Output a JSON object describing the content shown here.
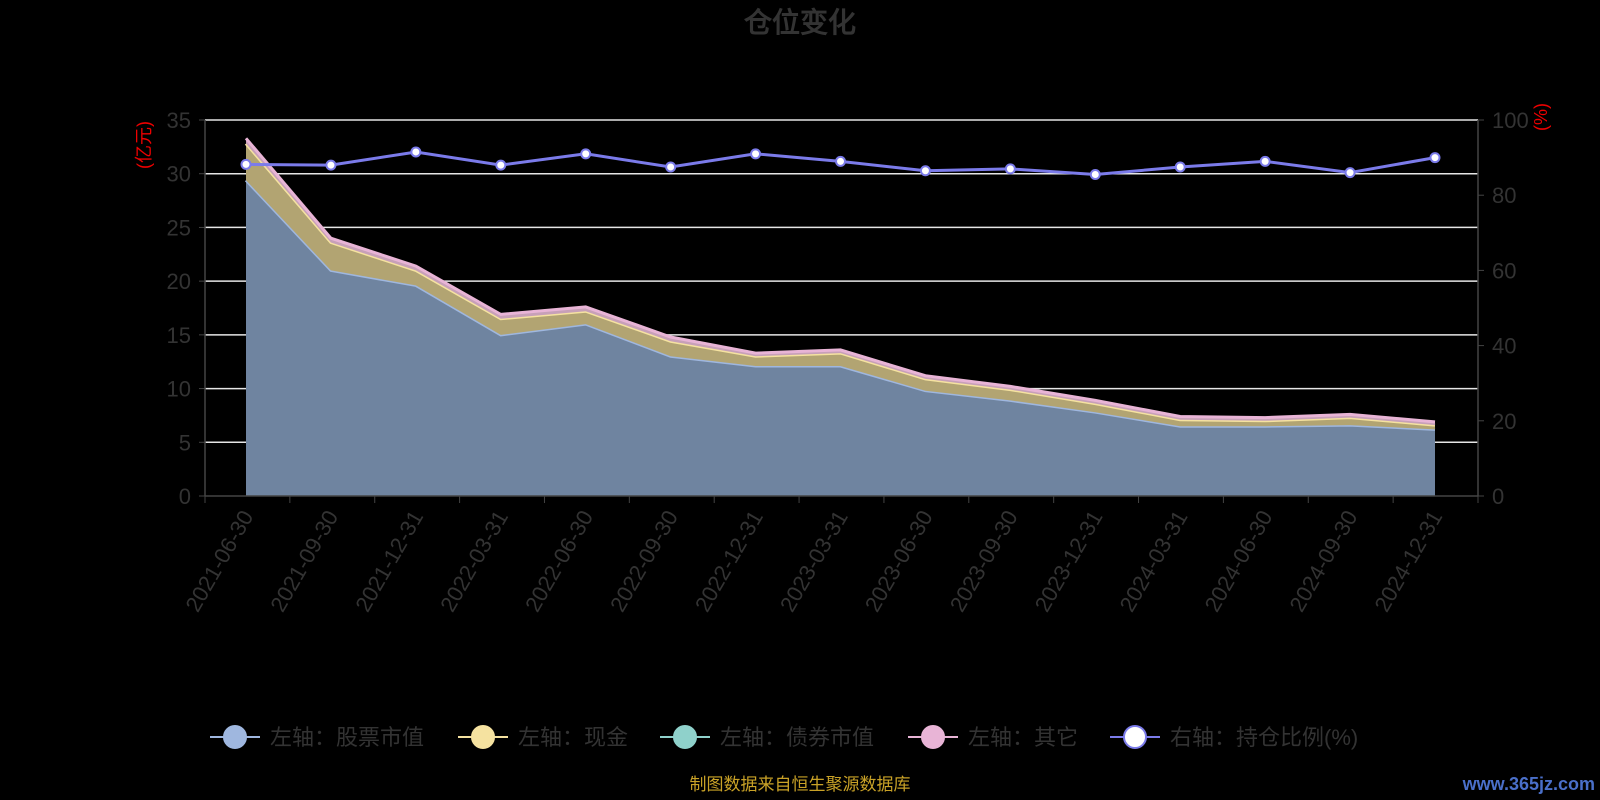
{
  "chart_data": {
    "type": "area",
    "title": "仓位变化",
    "left_unit": "(亿元)",
    "right_unit": "(%)",
    "x": [
      "2021-06-30",
      "2021-09-30",
      "2021-12-31",
      "2022-03-31",
      "2022-06-30",
      "2022-09-30",
      "2022-12-31",
      "2023-03-31",
      "2023-06-30",
      "2023-09-30",
      "2023-12-31",
      "2024-03-31",
      "2024-06-30",
      "2024-09-30",
      "2024-12-31"
    ],
    "left_ylim": [
      0,
      35
    ],
    "left_ticks": [
      "0",
      "5",
      "10",
      "15",
      "20",
      "25",
      "30",
      "35"
    ],
    "right_ylim": [
      0,
      100
    ],
    "right_ticks": [
      "0",
      "20",
      "40",
      "60",
      "80",
      "100"
    ],
    "series": [
      {
        "name": "左轴：股票市值",
        "axis": "left",
        "color": "#9fb7df",
        "fill": "#6f84a0",
        "values": [
          29.4,
          21.0,
          19.6,
          15.0,
          16.0,
          13.0,
          12.1,
          12.1,
          9.8,
          8.9,
          7.8,
          6.5,
          6.5,
          6.6,
          6.2
        ]
      },
      {
        "name": "左轴：现金",
        "axis": "left",
        "color": "#f5e2a0",
        "fill": "#b2a472",
        "values": [
          3.4,
          2.6,
          1.4,
          1.5,
          1.2,
          1.4,
          0.9,
          1.2,
          1.1,
          1.0,
          0.8,
          0.6,
          0.5,
          0.7,
          0.4
        ]
      },
      {
        "name": "左轴：债券市值",
        "axis": "left",
        "color": "#8fd1cb",
        "fill": "#7fb3ae",
        "values": [
          0,
          0,
          0,
          0,
          0,
          0,
          0,
          0,
          0,
          0,
          0,
          0,
          0,
          0,
          0
        ]
      },
      {
        "name": "左轴：其它",
        "axis": "left",
        "color": "#e8b4d6",
        "fill": "#c7a0b8",
        "values": [
          0.5,
          0.4,
          0.4,
          0.4,
          0.4,
          0.4,
          0.3,
          0.3,
          0.3,
          0.3,
          0.3,
          0.3,
          0.3,
          0.3,
          0.3
        ]
      },
      {
        "name": "右轴：持仓比例(%)",
        "axis": "right",
        "color": "#7b7bea",
        "values": [
          88.2,
          88.0,
          91.5,
          88.0,
          91.0,
          87.5,
          91.0,
          89.0,
          86.5,
          87.0,
          85.5,
          87.5,
          89.0,
          86.0,
          90.0
        ]
      }
    ],
    "legend_position": "bottom",
    "grid": true
  },
  "source_text": "制图数据来自恒生聚源数据库",
  "watermark": "www.365jz.com"
}
